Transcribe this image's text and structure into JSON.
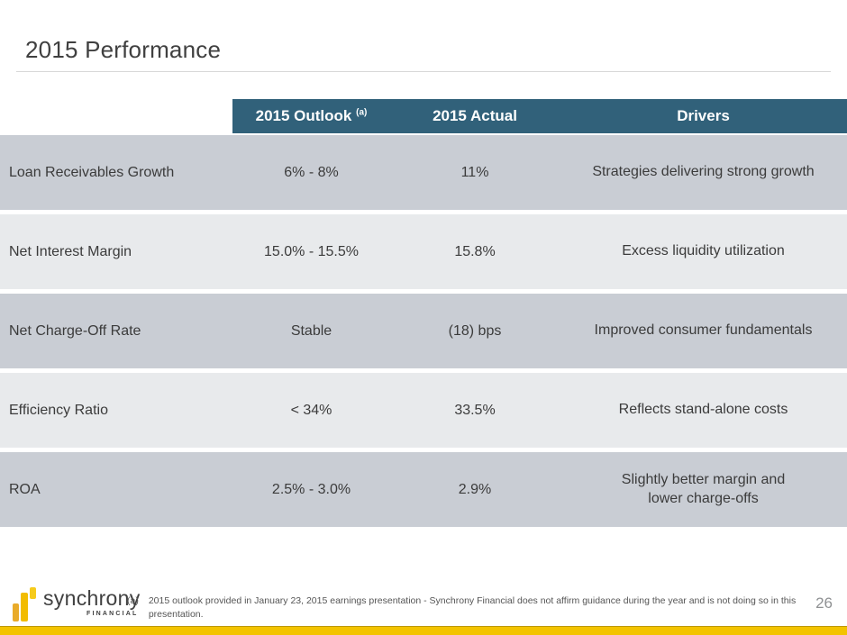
{
  "slide": {
    "title": "2015 Performance",
    "page_number": "26",
    "footnote_marker": "(a)",
    "footnote_text": "2015 outlook provided in January 23, 2015 earnings presentation - Synchrony Financial does not affirm guidance during the year and is not doing so in this presentation.",
    "logo": {
      "word": "synchrony",
      "sub": "FINANCIAL"
    }
  },
  "table": {
    "columns": {
      "outlook": "2015 Outlook",
      "outlook_superscript": "(a)",
      "actual": "2015 Actual",
      "drivers": "Drivers"
    },
    "rows": [
      {
        "metric": "Loan Receivables Growth",
        "outlook": "6% - 8%",
        "actual": "11%",
        "drivers": "Strategies delivering strong growth"
      },
      {
        "metric": "Net Interest Margin",
        "outlook": "15.0% - 15.5%",
        "actual": "15.8%",
        "drivers": "Excess liquidity utilization"
      },
      {
        "metric": "Net Charge-Off Rate",
        "outlook": "Stable",
        "actual": "(18) bps",
        "drivers": "Improved consumer fundamentals"
      },
      {
        "metric": "Efficiency Ratio",
        "outlook": "< 34%",
        "actual": "33.5%",
        "drivers": "Reflects stand-alone costs"
      },
      {
        "metric": "ROA",
        "outlook": "2.5% - 3.0%",
        "actual": "2.9%",
        "drivers": "Slightly better margin and\nlower charge-offs"
      }
    ]
  },
  "colors": {
    "header_bg": "#31617A",
    "row_dark": "#C9CDD4",
    "row_light": "#E8EAEC",
    "gold": "#F3C300"
  }
}
